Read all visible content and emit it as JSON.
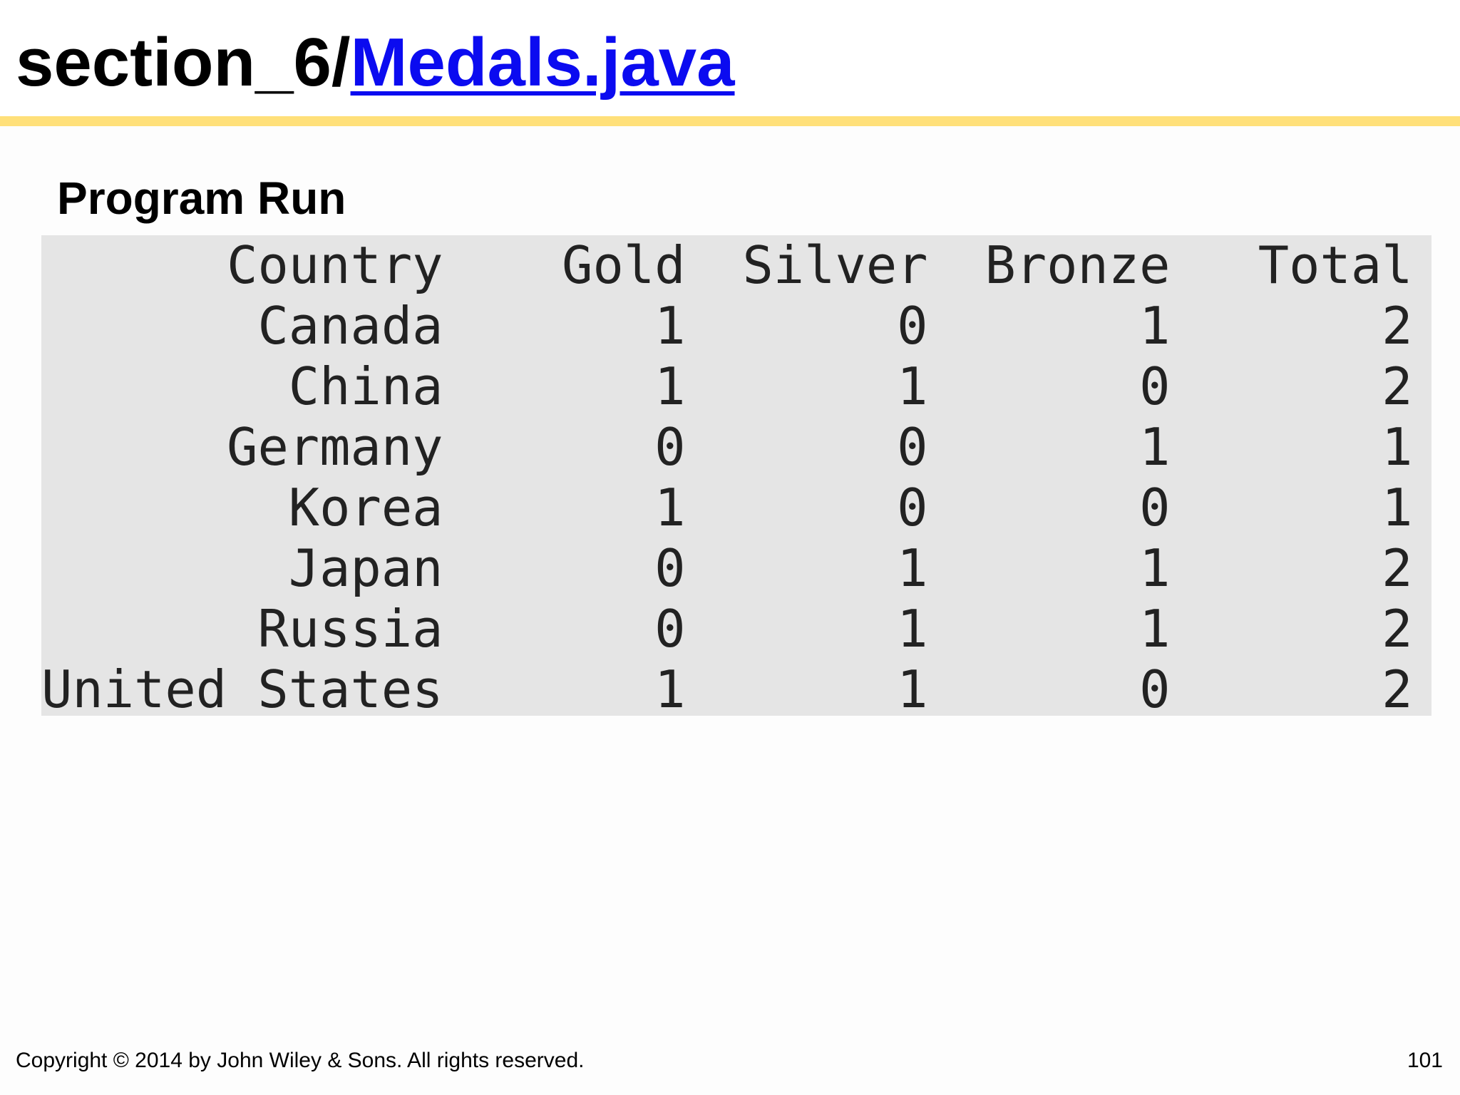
{
  "header": {
    "title_prefix": "section_6/",
    "title_link": "Medals.java"
  },
  "subtitle": "Program Run",
  "console": {
    "columns": [
      "Country",
      "Gold",
      "Silver",
      "Bronze",
      "Total"
    ],
    "rows": [
      [
        "Canada",
        "1",
        "0",
        "1",
        "2"
      ],
      [
        "China",
        "1",
        "1",
        "0",
        "2"
      ],
      [
        "Germany",
        "0",
        "0",
        "1",
        "1"
      ],
      [
        "Korea",
        "1",
        "0",
        "0",
        "1"
      ],
      [
        "Japan",
        "0",
        "1",
        "1",
        "2"
      ],
      [
        "Russia",
        "0",
        "1",
        "1",
        "2"
      ],
      [
        "United States",
        "1",
        "1",
        "0",
        "2"
      ]
    ]
  },
  "footer": {
    "copyright": "Copyright © 2014 by John Wiley & Sons.  All rights reserved.",
    "page_number": "101"
  },
  "colors": {
    "rule": "#ffe07a",
    "link": "#0b0bf0",
    "console_bg": "#e5e5e5"
  }
}
